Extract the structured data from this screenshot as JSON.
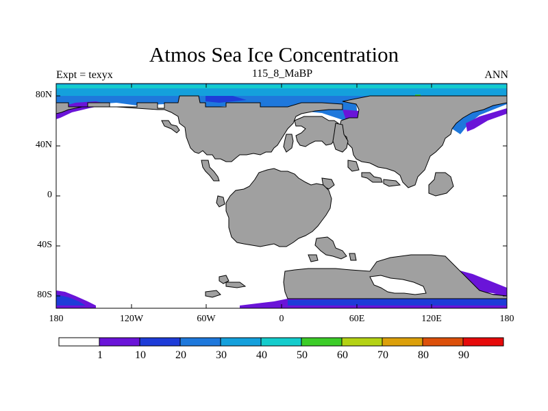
{
  "title": "Atmos Sea Ice Concentration",
  "left_title": "Expt = texyx",
  "center_title": "115_8_MaBP",
  "right_title": "ANN",
  "y_ticks": [
    "80N",
    "40N",
    "0",
    "40S",
    "80S"
  ],
  "x_ticks": [
    "180",
    "120W",
    "60W",
    "0",
    "60E",
    "120E",
    "180"
  ],
  "colorbar": {
    "labels": [
      "1",
      "10",
      "20",
      "30",
      "40",
      "50",
      "60",
      "70",
      "80",
      "90"
    ],
    "colors": [
      "#ffffff",
      "#6a14d8",
      "#1e3cd8",
      "#1e78dc",
      "#14a0dc",
      "#14cccc",
      "#3ccc28",
      "#b4d214",
      "#dca00a",
      "#dc500a",
      "#e60a0a"
    ]
  },
  "land_color": "#a0a0a0"
}
